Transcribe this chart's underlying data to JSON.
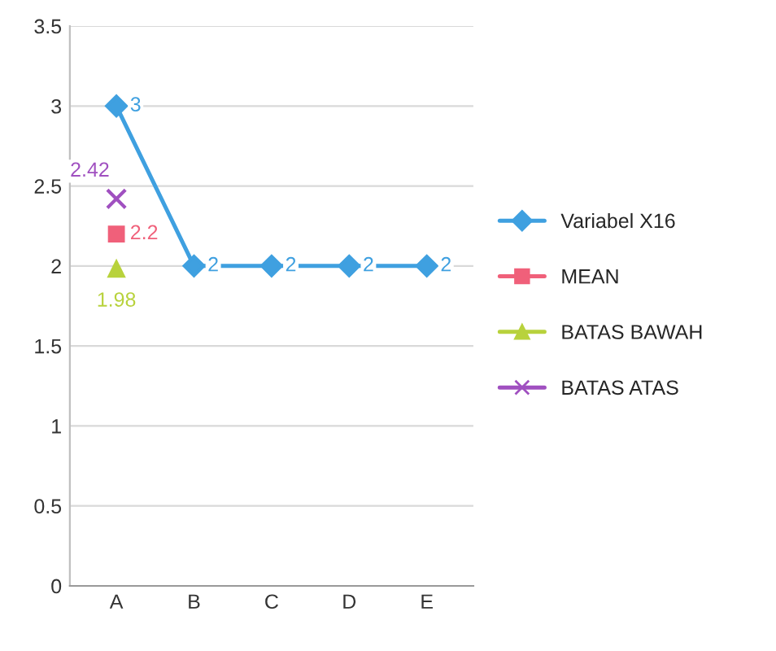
{
  "chart_data": {
    "type": "line",
    "categories": [
      "A",
      "B",
      "C",
      "D",
      "E"
    ],
    "series": [
      {
        "name": "Variabel X16",
        "color": "#3fa0e0",
        "marker": "diamond",
        "values": [
          3,
          2,
          2,
          2,
          2
        ]
      },
      {
        "name": "MEAN",
        "color": "#f0607a",
        "marker": "square",
        "values": [
          2.2,
          null,
          null,
          null,
          null
        ]
      },
      {
        "name": "BATAS BAWAH",
        "color": "#b8d23c",
        "marker": "triangle",
        "values": [
          1.98,
          null,
          null,
          null,
          null
        ]
      },
      {
        "name": "BATAS ATAS",
        "color": "#a050c0",
        "marker": "cross",
        "values": [
          2.42,
          null,
          null,
          null,
          null
        ]
      }
    ],
    "ylim": [
      0,
      3.5
    ],
    "yticks": [
      0,
      0.5,
      1,
      1.5,
      2,
      2.5,
      3,
      3.5
    ],
    "grid": "y",
    "legend": "right",
    "data_labels": true
  }
}
